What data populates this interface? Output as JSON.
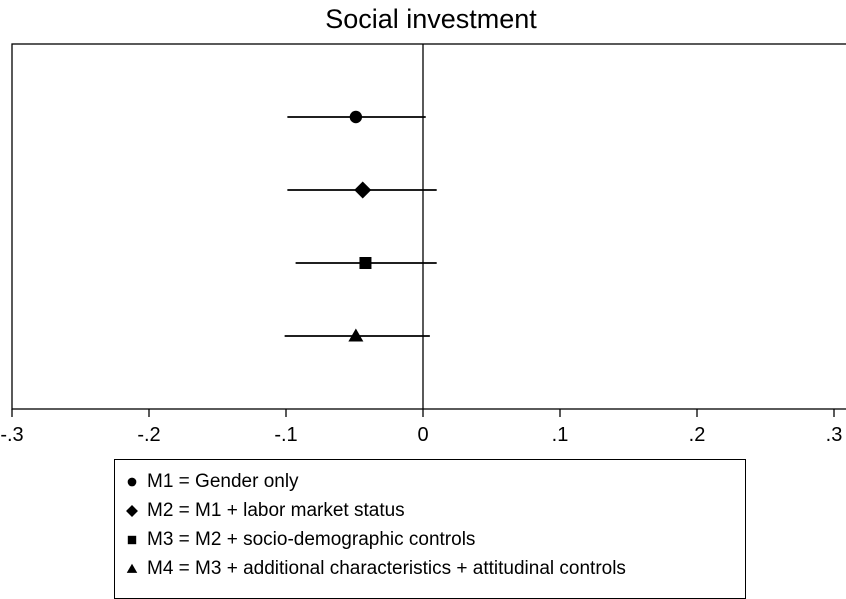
{
  "chart_data": {
    "type": "scatter",
    "title": "Social investment",
    "xlabel": "",
    "ylabel": "",
    "xlim": [
      -0.3,
      0.3
    ],
    "x_ticks": [
      -0.3,
      -0.2,
      -0.1,
      0,
      0.1,
      0.2,
      0.3
    ],
    "x_tick_labels": [
      "-.3",
      "-.2",
      "-.1",
      "0",
      ".1",
      ".2",
      ".3"
    ],
    "reference_line_x": 0,
    "grid": false,
    "legend_position": "bottom",
    "series": [
      {
        "name": "M1 = Gender only",
        "marker": "circle",
        "estimate": -0.049,
        "ci_low": -0.099,
        "ci_high": 0.002
      },
      {
        "name": "M2 = M1 + labor market status",
        "marker": "diamond",
        "estimate": -0.044,
        "ci_low": -0.099,
        "ci_high": 0.01
      },
      {
        "name": "M3 = M2 + socio-demographic controls",
        "marker": "square",
        "estimate": -0.042,
        "ci_low": -0.093,
        "ci_high": 0.01
      },
      {
        "name": "M4 = M3 + additional characteristics + attitudinal controls",
        "marker": "triangle",
        "estimate": -0.049,
        "ci_low": -0.101,
        "ci_high": 0.005
      }
    ],
    "colors": {
      "marker": "#000000",
      "axis": "#000000",
      "background": "#ffffff"
    }
  }
}
